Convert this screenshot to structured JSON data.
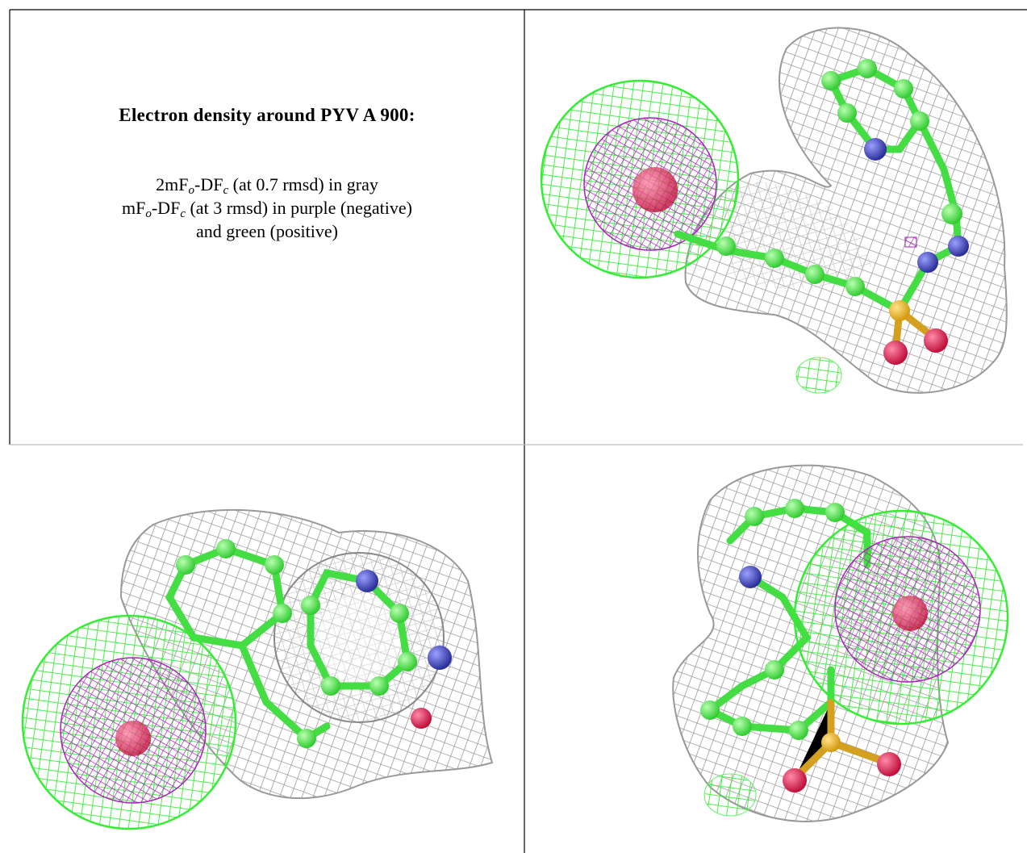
{
  "caption": {
    "title": "Electron density around PYV A 900:",
    "lines": [
      [
        {
          "text": "2mF"
        },
        {
          "text": "o",
          "sub": true
        },
        {
          "text": "-DF"
        },
        {
          "text": "c",
          "sub": true
        },
        {
          "text": " (at 0.7 rmsd) in gray"
        }
      ],
      [
        {
          "text": "mF"
        },
        {
          "text": "o",
          "sub": true
        },
        {
          "text": "-DF"
        },
        {
          "text": "c",
          "sub": true
        },
        {
          "text": " (at 3 rmsd) in purple (negative)"
        }
      ],
      [
        {
          "text": "and green (positive)"
        }
      ]
    ]
  }
}
